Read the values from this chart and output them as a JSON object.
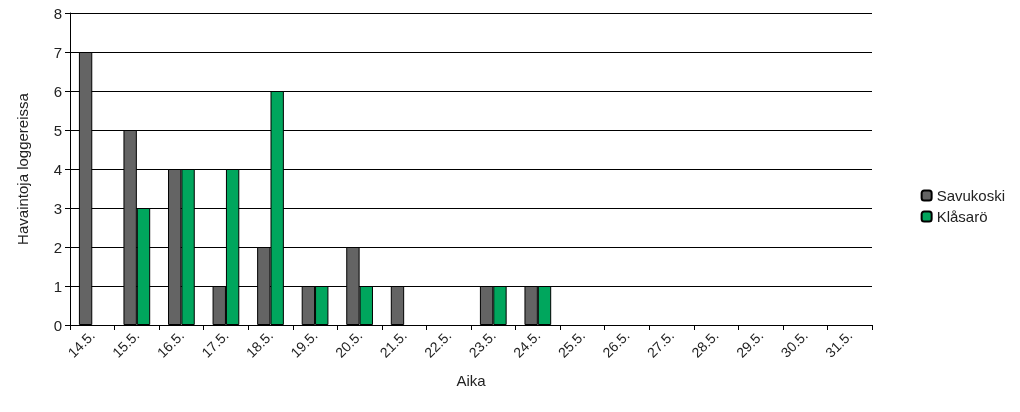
{
  "chart_data": {
    "type": "bar",
    "xlabel": "Aika",
    "ylabel": "Havaintoja loggereissa",
    "categories": [
      "14.5.",
      "15.5.",
      "16.5.",
      "17.5.",
      "18.5.",
      "19.5.",
      "20.5.",
      "21.5.",
      "22.5.",
      "23.5.",
      "24.5.",
      "25.5.",
      "26.5.",
      "27.5.",
      "28.5.",
      "29.5.",
      "30.5.",
      "31.5."
    ],
    "series": [
      {
        "name": "Savukoski",
        "color": "#646464",
        "values": [
          7,
          5,
          4,
          1,
          2,
          1,
          2,
          1,
          0,
          1,
          1,
          0,
          0,
          0,
          0,
          0,
          0,
          0
        ]
      },
      {
        "name": "Klåsarö",
        "color": "#00a65d",
        "values": [
          0,
          3,
          4,
          4,
          6,
          1,
          1,
          0,
          0,
          1,
          1,
          0,
          0,
          0,
          0,
          0,
          0,
          0
        ]
      }
    ],
    "ylim": [
      0,
      8
    ],
    "yticks": [
      0,
      1,
      2,
      3,
      4,
      5,
      6,
      7,
      8
    ],
    "grid": "y",
    "legend": "right"
  }
}
